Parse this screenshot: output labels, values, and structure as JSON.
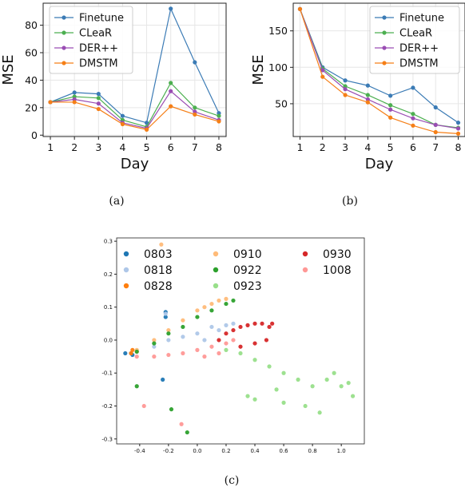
{
  "chart_data": [
    {
      "type": "line",
      "caption": "(a)",
      "xlabel": "Day",
      "ylabel": "MSE",
      "x": [
        1,
        2,
        3,
        4,
        5,
        6,
        7,
        8
      ],
      "xlim": [
        0.7,
        8.3
      ],
      "ylim": [
        -1,
        96
      ],
      "yticks": [
        0,
        20,
        40,
        60,
        80
      ],
      "series": [
        {
          "name": "Finetune",
          "color": "#3b7bb5",
          "values": [
            24,
            31,
            30,
            14,
            9,
            92,
            53,
            16
          ]
        },
        {
          "name": "CLeaR",
          "color": "#4caf50",
          "values": [
            24,
            28,
            27,
            11,
            6,
            38,
            20,
            14
          ]
        },
        {
          "name": "DER++",
          "color": "#9a4db3",
          "values": [
            24,
            26,
            23,
            9,
            5,
            32,
            17,
            11
          ]
        },
        {
          "name": "DMSTM",
          "color": "#f57f17",
          "values": [
            24,
            24,
            19,
            8,
            4,
            21,
            15,
            10
          ]
        }
      ],
      "legend": "top-left",
      "grid": true
    },
    {
      "type": "line",
      "caption": "(b)",
      "xlabel": "Day",
      "ylabel": "MSE",
      "x": [
        1,
        2,
        3,
        4,
        5,
        6,
        7,
        8
      ],
      "xlim": [
        0.7,
        8.3
      ],
      "ylim": [
        5,
        188
      ],
      "yticks": [
        50,
        100,
        150
      ],
      "series": [
        {
          "name": "Finetune",
          "color": "#3b7bb5",
          "values": [
            180,
            100,
            82,
            75,
            61,
            72,
            45,
            24
          ]
        },
        {
          "name": "CLeaR",
          "color": "#4caf50",
          "values": [
            180,
            98,
            74,
            62,
            48,
            36,
            21,
            17
          ]
        },
        {
          "name": "DER++",
          "color": "#9a4db3",
          "values": [
            180,
            96,
            70,
            56,
            42,
            30,
            21,
            16
          ]
        },
        {
          "name": "DMSTM",
          "color": "#f57f17",
          "values": [
            180,
            87,
            62,
            52,
            31,
            20,
            11,
            9
          ]
        }
      ],
      "legend": "top-right",
      "grid": true
    },
    {
      "type": "scatter",
      "caption": "(c)",
      "xlim": [
        -0.56,
        1.16
      ],
      "ylim": [
        -0.315,
        0.31
      ],
      "xticks": [
        -0.4,
        -0.2,
        0.0,
        0.2,
        0.4,
        0.6,
        0.8,
        1.0
      ],
      "yticks": [
        -0.3,
        -0.2,
        -0.1,
        0.0,
        0.1,
        0.2,
        0.3
      ],
      "legend": "top",
      "series": [
        {
          "name": "0803",
          "color": "#1f77b4",
          "values": [
            [
              -0.5,
              -0.04
            ],
            [
              -0.46,
              -0.04
            ],
            [
              -0.24,
              -0.12
            ],
            [
              -0.22,
              0.07
            ],
            [
              -0.22,
              0.085
            ],
            [
              -0.45,
              -0.045
            ]
          ]
        },
        {
          "name": "0818",
          "color": "#aec7e8",
          "values": [
            [
              -0.2,
              0.0
            ],
            [
              -0.1,
              0.01
            ],
            [
              0.0,
              0.02
            ],
            [
              0.1,
              0.04
            ],
            [
              0.2,
              0.045
            ],
            [
              0.25,
              0.05
            ],
            [
              0.15,
              0.03
            ],
            [
              -0.3,
              -0.02
            ],
            [
              -0.22,
              0.08
            ],
            [
              0.05,
              0.0
            ]
          ]
        },
        {
          "name": "0828",
          "color": "#ff7f0e",
          "values": [
            [
              -0.42,
              -0.035
            ],
            [
              -0.46,
              -0.04
            ],
            [
              -0.45,
              -0.03
            ]
          ]
        },
        {
          "name": "0910",
          "color": "#ffbb78",
          "values": [
            [
              -0.42,
              -0.03
            ],
            [
              -0.3,
              0.0
            ],
            [
              -0.2,
              0.03
            ],
            [
              -0.1,
              0.06
            ],
            [
              0.0,
              0.09
            ],
            [
              0.1,
              0.11
            ],
            [
              0.15,
              0.12
            ],
            [
              0.2,
              0.125
            ],
            [
              -0.25,
              0.29
            ],
            [
              0.05,
              0.1
            ]
          ]
        },
        {
          "name": "0922",
          "color": "#2ca02c",
          "values": [
            [
              -0.42,
              -0.035
            ],
            [
              -0.3,
              -0.01
            ],
            [
              -0.2,
              0.02
            ],
            [
              -0.1,
              0.04
            ],
            [
              0.0,
              0.07
            ],
            [
              0.1,
              0.09
            ],
            [
              0.2,
              0.11
            ],
            [
              0.25,
              0.12
            ],
            [
              -0.42,
              -0.14
            ],
            [
              -0.18,
              -0.21
            ],
            [
              -0.07,
              -0.28
            ]
          ]
        },
        {
          "name": "0923",
          "color": "#98df8a",
          "values": [
            [
              0.2,
              -0.03
            ],
            [
              0.3,
              -0.04
            ],
            [
              0.4,
              -0.06
            ],
            [
              0.5,
              -0.08
            ],
            [
              0.6,
              -0.1
            ],
            [
              0.7,
              -0.12
            ],
            [
              0.8,
              -0.14
            ],
            [
              0.9,
              -0.12
            ],
            [
              1.0,
              -0.14
            ],
            [
              1.08,
              -0.17
            ],
            [
              0.75,
              -0.2
            ],
            [
              0.85,
              -0.22
            ],
            [
              0.55,
              -0.15
            ],
            [
              0.4,
              -0.18
            ],
            [
              0.35,
              -0.17
            ],
            [
              0.6,
              -0.19
            ],
            [
              0.95,
              -0.1
            ],
            [
              1.05,
              -0.13
            ]
          ]
        },
        {
          "name": "0930",
          "color": "#d62728",
          "values": [
            [
              0.15,
              0.0
            ],
            [
              0.2,
              0.02
            ],
            [
              0.25,
              0.03
            ],
            [
              0.3,
              0.04
            ],
            [
              0.35,
              0.045
            ],
            [
              0.4,
              0.05
            ],
            [
              0.45,
              0.05
            ],
            [
              0.5,
              0.04
            ],
            [
              0.52,
              0.05
            ],
            [
              0.3,
              -0.02
            ],
            [
              0.4,
              -0.01
            ],
            [
              0.48,
              0.0
            ]
          ]
        },
        {
          "name": "1008",
          "color": "#ff9896",
          "values": [
            [
              -0.42,
              -0.05
            ],
            [
              -0.3,
              -0.05
            ],
            [
              -0.2,
              -0.045
            ],
            [
              -0.1,
              -0.04
            ],
            [
              0.0,
              -0.03
            ],
            [
              0.1,
              -0.02
            ],
            [
              0.2,
              -0.01
            ],
            [
              0.25,
              0.0
            ],
            [
              -0.37,
              -0.2
            ],
            [
              -0.11,
              -0.255
            ],
            [
              0.05,
              -0.05
            ],
            [
              0.15,
              -0.04
            ]
          ]
        }
      ]
    }
  ]
}
